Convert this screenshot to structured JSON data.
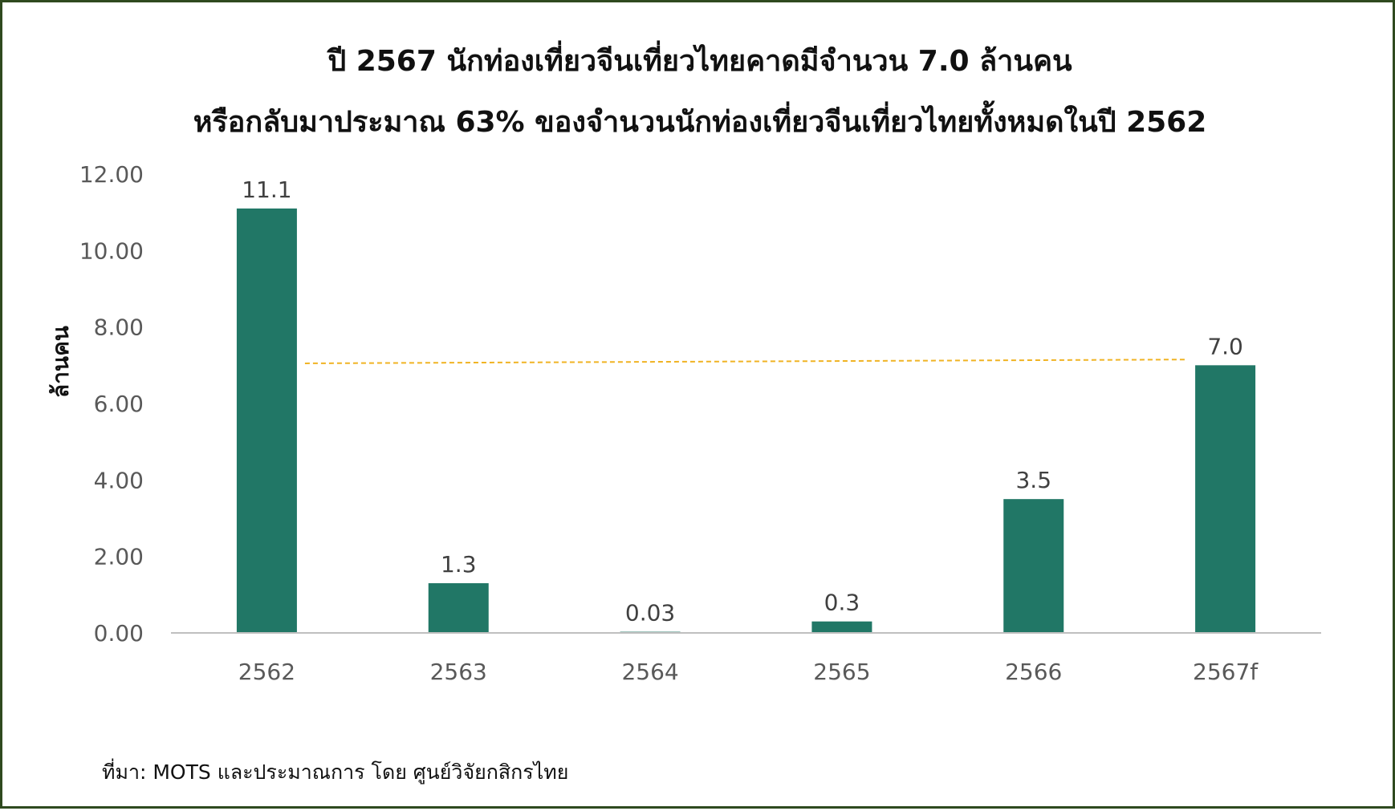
{
  "chart_data": {
    "type": "bar",
    "title": "ปี 2567 นักท่องเที่ยวจีนเที่ยวไทยคาดมีจำนวน 7.0 ล้านคน",
    "subtitle": "หรือกลับมาประมาณ 63% ของจำนวนนักท่องเที่ยวจีนเที่ยวไทยทั้งหมดในปี 2562",
    "xlabel": "",
    "ylabel": "ล้านคน",
    "categories": [
      "2562",
      "2563",
      "2564",
      "2565",
      "2566",
      "2567f"
    ],
    "values": [
      11.1,
      1.3,
      0.03,
      0.3,
      3.5,
      7.0
    ],
    "data_labels": [
      "11.1",
      "1.3",
      "0.03",
      "0.3",
      "3.5",
      "7.0"
    ],
    "ylim": [
      0,
      12
    ],
    "yticks": [
      "0.00",
      "2.00",
      "4.00",
      "6.00",
      "8.00",
      "10.00",
      "12.00"
    ],
    "reference_line": {
      "from_category": "2562",
      "to_category": "2567f",
      "from_value": 7.05,
      "to_value": 7.15,
      "style": "dashed"
    },
    "grid": false,
    "legend": "none",
    "colors": {
      "bar": "#217766",
      "reference_line": "#f0b323",
      "axis": "#bfbfbf",
      "tick_text": "#595959",
      "label_text": "#404040",
      "frame": "#2f4a1f"
    }
  },
  "footer": {
    "source": "ที่มา: MOTS และประมาณการ โดย ศูนย์วิจัยกสิกรไทย"
  }
}
